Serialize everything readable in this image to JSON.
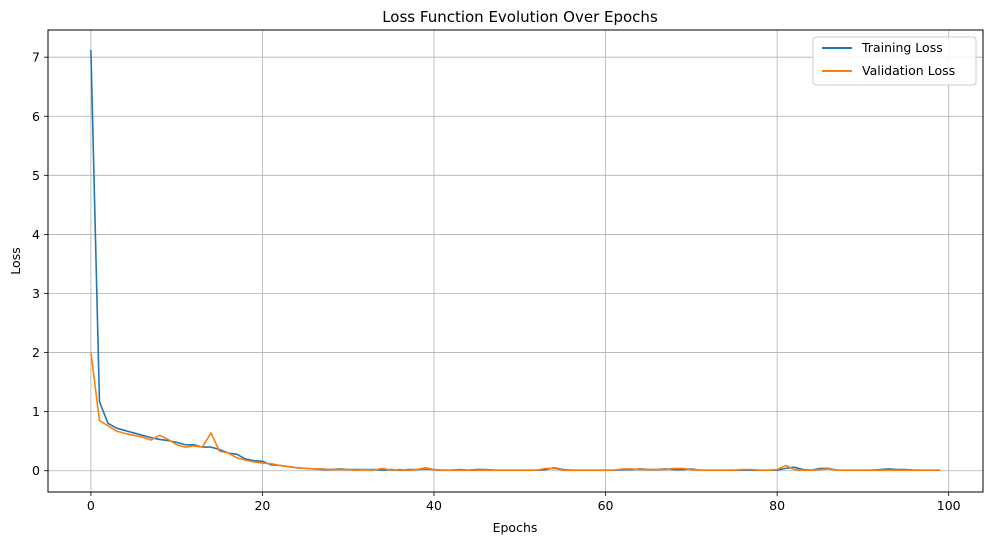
{
  "chart_data": {
    "type": "line",
    "title": "Loss Function Evolution Over Epochs",
    "xlabel": "Epochs",
    "ylabel": "Loss",
    "xlim": [
      -5,
      104
    ],
    "ylim": [
      -0.36,
      7.46
    ],
    "xticks": [
      0,
      20,
      40,
      60,
      80,
      100
    ],
    "yticks": [
      0,
      1,
      2,
      3,
      4,
      5,
      6,
      7
    ],
    "grid": true,
    "legend_position": "top-right",
    "series": [
      {
        "name": "Training Loss",
        "color": "#1f77b4",
        "x": [
          0,
          1,
          2,
          3,
          4,
          5,
          6,
          7,
          8,
          9,
          10,
          11,
          12,
          13,
          14,
          15,
          16,
          17,
          18,
          19,
          20,
          21,
          22,
          23,
          24,
          25,
          26,
          27,
          28,
          29,
          30,
          31,
          32,
          33,
          34,
          35,
          36,
          37,
          38,
          39,
          40,
          41,
          42,
          43,
          44,
          45,
          46,
          47,
          48,
          49,
          50,
          51,
          52,
          53,
          54,
          55,
          56,
          57,
          58,
          59,
          60,
          61,
          62,
          63,
          64,
          65,
          66,
          67,
          68,
          69,
          70,
          71,
          72,
          73,
          74,
          75,
          76,
          77,
          78,
          79,
          80,
          81,
          82,
          83,
          84,
          85,
          86,
          87,
          88,
          89,
          90,
          91,
          92,
          93,
          94,
          95,
          96,
          97,
          98,
          99
        ],
        "values": [
          7.12,
          1.17,
          0.8,
          0.72,
          0.68,
          0.64,
          0.6,
          0.56,
          0.53,
          0.51,
          0.48,
          0.44,
          0.44,
          0.4,
          0.4,
          0.36,
          0.3,
          0.28,
          0.2,
          0.17,
          0.16,
          0.1,
          0.09,
          0.07,
          0.05,
          0.04,
          0.03,
          0.02,
          0.02,
          0.03,
          0.02,
          0.02,
          0.02,
          0.02,
          0.01,
          0.02,
          0.01,
          0.02,
          0.02,
          0.03,
          0.02,
          0.01,
          0.01,
          0.02,
          0.01,
          0.02,
          0.02,
          0.01,
          0.01,
          0.01,
          0.01,
          0.01,
          0.01,
          0.02,
          0.05,
          0.02,
          0.01,
          0.01,
          0.01,
          0.01,
          0.01,
          0.01,
          0.02,
          0.02,
          0.03,
          0.02,
          0.02,
          0.03,
          0.02,
          0.02,
          0.03,
          0.01,
          0.01,
          0.01,
          0.01,
          0.01,
          0.01,
          0.01,
          0.01,
          0.01,
          0.01,
          0.04,
          0.06,
          0.02,
          0.01,
          0.04,
          0.04,
          0.01,
          0.01,
          0.01,
          0.01,
          0.01,
          0.02,
          0.03,
          0.02,
          0.02,
          0.01,
          0.01,
          0.01,
          0.01
        ]
      },
      {
        "name": "Validation Loss",
        "color": "#ff7f0e",
        "x": [
          0,
          1,
          2,
          3,
          4,
          5,
          6,
          7,
          8,
          9,
          10,
          11,
          12,
          13,
          14,
          15,
          16,
          17,
          18,
          19,
          20,
          21,
          22,
          23,
          24,
          25,
          26,
          27,
          28,
          29,
          30,
          31,
          32,
          33,
          34,
          35,
          36,
          37,
          38,
          39,
          40,
          41,
          42,
          43,
          44,
          45,
          46,
          47,
          48,
          49,
          50,
          51,
          52,
          53,
          54,
          55,
          56,
          57,
          58,
          59,
          60,
          61,
          62,
          63,
          64,
          65,
          66,
          67,
          68,
          69,
          70,
          71,
          72,
          73,
          74,
          75,
          76,
          77,
          78,
          79,
          80,
          81,
          82,
          83,
          84,
          85,
          86,
          87,
          88,
          89,
          90,
          91,
          92,
          93,
          94,
          95,
          96,
          97,
          98,
          99
        ],
        "values": [
          2.0,
          0.85,
          0.76,
          0.67,
          0.63,
          0.6,
          0.57,
          0.52,
          0.6,
          0.53,
          0.44,
          0.4,
          0.42,
          0.4,
          0.64,
          0.33,
          0.3,
          0.22,
          0.18,
          0.15,
          0.13,
          0.12,
          0.09,
          0.07,
          0.05,
          0.04,
          0.03,
          0.03,
          0.02,
          0.02,
          0.02,
          0.01,
          0.02,
          0.01,
          0.04,
          0.01,
          0.02,
          0.01,
          0.02,
          0.05,
          0.02,
          0.01,
          0.01,
          0.01,
          0.01,
          0.01,
          0.01,
          0.01,
          0.01,
          0.01,
          0.01,
          0.01,
          0.01,
          0.04,
          0.04,
          0.01,
          0.01,
          0.01,
          0.01,
          0.01,
          0.01,
          0.01,
          0.03,
          0.03,
          0.02,
          0.02,
          0.02,
          0.02,
          0.04,
          0.04,
          0.02,
          0.01,
          0.01,
          0.01,
          0.01,
          0.01,
          0.02,
          0.02,
          0.01,
          0.01,
          0.02,
          0.09,
          0.02,
          0.01,
          0.01,
          0.02,
          0.03,
          0.01,
          0.01,
          0.01,
          0.01,
          0.01,
          0.01,
          0.01,
          0.01,
          0.01,
          0.01,
          0.01,
          0.01,
          0.01
        ]
      }
    ]
  }
}
